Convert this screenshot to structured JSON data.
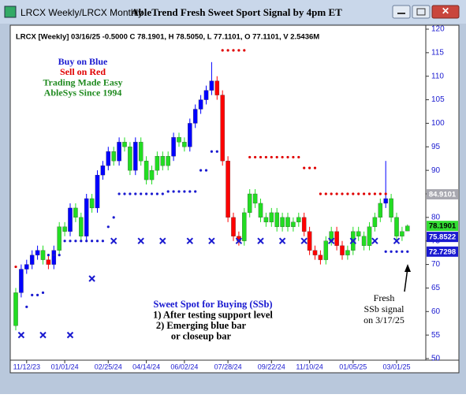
{
  "window_title": "LRCX Weekly/LRCX Monthly",
  "chart_data": {
    "type": "candlestick",
    "title": "AbleTrend Fresh Sweet Sport Signal by 4pm ET",
    "subtitle": "LRCX [Weekly] 03/16/25 -0.5000 C 78.1901, H 78.5050, L 77.1101, O 77.1101, V 2.5436M",
    "annotations": [
      {
        "text": "Buy on Blue",
        "color": "#1a1ad0"
      },
      {
        "text": "Sell on Red",
        "color": "#e00000"
      },
      {
        "text": "Trading Made Easy",
        "color": "#1f8a1f"
      },
      {
        "text": "AbleSys Since 1994",
        "color": "#1f8a1f"
      }
    ],
    "notes": [
      "Sweet Spot for Buying (SSb)",
      "1) After testing support level",
      "2) Emerging blue bar",
      "or closeup bar"
    ],
    "signal_note": [
      "Fresh",
      "SSb signal",
      "on 3/17/25"
    ],
    "categories": [
      null,
      null,
      "11/12/23",
      null,
      null,
      null,
      null,
      null,
      null,
      "01/01/24",
      null,
      null,
      null,
      null,
      null,
      null,
      null,
      "02/25/24",
      null,
      null,
      null,
      null,
      null,
      null,
      "04/14/24",
      null,
      null,
      null,
      null,
      null,
      null,
      "06/02/24",
      null,
      null,
      null,
      null,
      null,
      null,
      null,
      "07/28/24",
      null,
      null,
      null,
      null,
      null,
      null,
      null,
      "09/22/24",
      null,
      null,
      null,
      null,
      null,
      null,
      "11/10/24",
      null,
      null,
      null,
      null,
      null,
      null,
      null,
      "01/05/25",
      null,
      null,
      null,
      null,
      null,
      null,
      null,
      "03/01/25",
      null,
      null
    ],
    "open": [
      57,
      64,
      69,
      70,
      72,
      73,
      71,
      70,
      73,
      78,
      77,
      82,
      80,
      76,
      84,
      82,
      89,
      91,
      94,
      92,
      96,
      95,
      90,
      96,
      92,
      88,
      90,
      93,
      91,
      93,
      97,
      96,
      95,
      100,
      103,
      105,
      107,
      109,
      106,
      92,
      80,
      76,
      75,
      81,
      85,
      83,
      80,
      79,
      81,
      78,
      80,
      78,
      79,
      80,
      77,
      73,
      72,
      71,
      75,
      77,
      74,
      72,
      73,
      77,
      76,
      74,
      78,
      80,
      83,
      84,
      80,
      76,
      77.1101
    ],
    "high": [
      65,
      70,
      71,
      73,
      74,
      74,
      72,
      74,
      79,
      79,
      83,
      83,
      81,
      85,
      85,
      90,
      92,
      95,
      95,
      97,
      97,
      96,
      97,
      97,
      93,
      91,
      94,
      94,
      94,
      98,
      98,
      97,
      101,
      104,
      106,
      108,
      113,
      110,
      107,
      93,
      81,
      77,
      82,
      86,
      86,
      84,
      81,
      82,
      82,
      81,
      81,
      80,
      81,
      81,
      78,
      74,
      73,
      76,
      78,
      78,
      75,
      74,
      78,
      78,
      77,
      79,
      81,
      84,
      92,
      85,
      81,
      78,
      78.505
    ],
    "low": [
      56,
      63,
      68,
      69,
      71,
      70,
      69,
      69,
      72,
      76,
      76,
      79,
      75,
      75,
      81,
      81,
      88,
      90,
      91,
      91,
      94,
      89,
      89,
      91,
      87,
      87,
      89,
      90,
      90,
      92,
      95,
      94,
      94,
      99,
      102,
      104,
      106,
      105,
      91,
      79,
      75,
      74,
      74,
      80,
      82,
      79,
      78,
      78,
      77,
      77,
      77,
      77,
      78,
      76,
      72,
      71,
      70,
      70,
      74,
      73,
      71,
      71,
      72,
      75,
      73,
      73,
      77,
      79,
      82,
      79,
      75,
      75,
      77.1101
    ],
    "close": [
      64,
      69,
      70,
      72,
      73,
      71,
      70,
      73,
      78,
      77,
      82,
      80,
      76,
      84,
      82,
      89,
      91,
      94,
      92,
      96,
      95,
      90,
      96,
      92,
      88,
      90,
      93,
      91,
      93,
      97,
      96,
      95,
      100,
      103,
      105,
      107,
      109,
      106,
      92,
      80,
      76,
      75,
      81,
      85,
      83,
      80,
      79,
      81,
      78,
      80,
      78,
      79,
      80,
      77,
      73,
      72,
      71,
      75,
      77,
      74,
      72,
      73,
      77,
      76,
      74,
      78,
      80,
      83,
      84,
      80,
      76,
      77,
      78.1901
    ],
    "bar_colors": [
      "#22dd22",
      "blue",
      "blue",
      "blue",
      "blue",
      "#22dd22",
      "red",
      "blue",
      "#22dd22",
      "#22dd22",
      "blue",
      "#22dd22",
      "#22dd22",
      "blue",
      "#22dd22",
      "blue",
      "blue",
      "blue",
      "#22dd22",
      "blue",
      "#22dd22",
      "#22dd22",
      "blue",
      "#22dd22",
      "#22dd22",
      "#22dd22",
      "#22dd22",
      "#22dd22",
      "#22dd22",
      "blue",
      "#22dd22",
      "#22dd22",
      "blue",
      "blue",
      "blue",
      "blue",
      "blue",
      "red",
      "red",
      "red",
      "red",
      "red",
      "#22dd22",
      "#22dd22",
      "#22dd22",
      "#22dd22",
      "#22dd22",
      "#22dd22",
      "#22dd22",
      "#22dd22",
      "#22dd22",
      "#22dd22",
      "#22dd22",
      "red",
      "red",
      "red",
      "red",
      "#22dd22",
      "#22dd22",
      "red",
      "red",
      "#22dd22",
      "#22dd22",
      "#22dd22",
      "#22dd22",
      "#22dd22",
      "#22dd22",
      "#22dd22",
      "blue",
      "#22dd22",
      "#22dd22",
      "#22dd22",
      "#22dd22"
    ],
    "sell_stop": {
      "color": "#e00000",
      "values": [
        69.5,
        null,
        null,
        null,
        null,
        null,
        null,
        null,
        null,
        null,
        null,
        null,
        null,
        null,
        null,
        null,
        null,
        null,
        null,
        null,
        null,
        null,
        null,
        null,
        null,
        null,
        null,
        null,
        null,
        null,
        null,
        null,
        null,
        null,
        null,
        null,
        null,
        null,
        115.5,
        115.5,
        115.5,
        115.5,
        115.5,
        92.8,
        92.8,
        92.8,
        92.8,
        92.8,
        92.8,
        92.8,
        92.8,
        92.8,
        92.8,
        90.5,
        90.5,
        90.5,
        85,
        85,
        85,
        85,
        85,
        85,
        85,
        85,
        85,
        85,
        85,
        85,
        85,
        null,
        null,
        null,
        null
      ]
    },
    "buy_stop": {
      "color": "#1a1ad0",
      "values": [
        null,
        null,
        61,
        63.5,
        63.5,
        64,
        72,
        72,
        72,
        75,
        75,
        75,
        75,
        75,
        75,
        75,
        75,
        78,
        80,
        85,
        85,
        85,
        85,
        85,
        85,
        85,
        85,
        85,
        85.5,
        85.5,
        85.5,
        85.5,
        85.5,
        85.5,
        90,
        90,
        94,
        94,
        null,
        null,
        null,
        null,
        null,
        null,
        null,
        null,
        null,
        null,
        null,
        null,
        null,
        null,
        null,
        null,
        null,
        null,
        null,
        null,
        null,
        null,
        null,
        null,
        null,
        null,
        null,
        null,
        null,
        null,
        72.73,
        72.73,
        72.73,
        72.73,
        72.73
      ]
    },
    "ssb": {
      "color": "#1a1ad0",
      "values": [
        null,
        55,
        null,
        null,
        null,
        55,
        null,
        null,
        null,
        null,
        55,
        null,
        null,
        null,
        67,
        null,
        null,
        null,
        75,
        null,
        null,
        null,
        null,
        75,
        null,
        null,
        null,
        75,
        null,
        null,
        null,
        null,
        75,
        null,
        null,
        null,
        75,
        null,
        null,
        null,
        null,
        75,
        null,
        null,
        null,
        75,
        null,
        null,
        null,
        75,
        null,
        null,
        null,
        75,
        null,
        null,
        null,
        null,
        75,
        null,
        null,
        null,
        75,
        null,
        null,
        null,
        75,
        null,
        null,
        null,
        75,
        null,
        null
      ]
    },
    "price_tags": [
      {
        "value": 84.9101,
        "color": "#a8a8b0"
      },
      {
        "value": 78.1901,
        "color": "#33dd33"
      },
      {
        "value": 75.8522,
        "color": "#1a1ad0"
      },
      {
        "value": 72.7298,
        "color": "#1a1ad0"
      }
    ],
    "ylim": [
      50,
      120
    ],
    "yticks": [
      50,
      55,
      60,
      65,
      70,
      75,
      80,
      85,
      90,
      95,
      100,
      105,
      110,
      115,
      120
    ],
    "grid": false
  }
}
